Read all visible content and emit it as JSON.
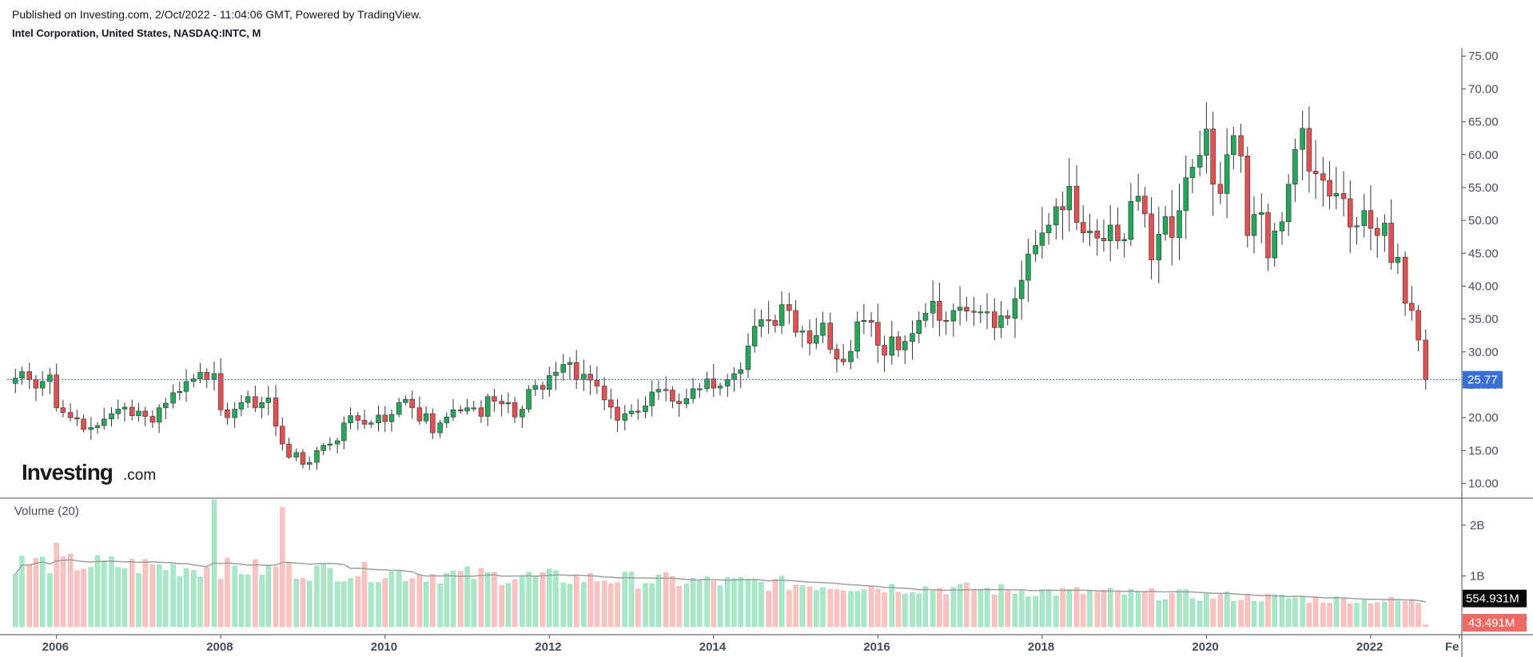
{
  "header": {
    "published": "Published on Investing.com, 2/Oct/2022 - 11:04:06 GMT, Powered by TradingView.",
    "symbol": "Intel Corporation, United States, NASDAQ:INTC, M"
  },
  "logo": {
    "text": "Investing",
    "suffix": ".com"
  },
  "colors": {
    "up": "#26a65b",
    "down": "#e05252",
    "up_volume": "#a6e8c8",
    "down_volume": "#fbc3c0",
    "last_price": "#3b6fd8",
    "volume_ma": "#9e9e9e"
  },
  "chart_data": {
    "type": "candlestick",
    "interval": "monthly",
    "price": {
      "ylim": [
        8,
        76
      ],
      "yticks": [
        "10.00",
        "15.00",
        "20.00",
        "25.00",
        "30.00",
        "35.00",
        "40.00",
        "45.00",
        "50.00",
        "55.00",
        "60.00",
        "65.00",
        "70.00",
        "75.00"
      ],
      "last_price": 25.77,
      "last_price_label": "25.77",
      "monthly_close": [
        [
          2005.5,
          26.0
        ],
        [
          2005.58,
          27.0
        ],
        [
          2005.67,
          25.8
        ],
        [
          2005.75,
          24.5
        ],
        [
          2005.83,
          25.5
        ],
        [
          2005.92,
          26.5
        ],
        [
          2006.0,
          21.5
        ],
        [
          2006.08,
          20.8
        ],
        [
          2006.17,
          20.0
        ],
        [
          2006.25,
          19.8
        ],
        [
          2006.33,
          18.2
        ],
        [
          2006.42,
          18.5
        ],
        [
          2006.5,
          18.8
        ],
        [
          2006.58,
          19.8
        ],
        [
          2006.67,
          20.6
        ],
        [
          2006.75,
          21.3
        ],
        [
          2006.83,
          21.6
        ],
        [
          2006.92,
          20.3
        ],
        [
          2007.0,
          21.0
        ],
        [
          2007.08,
          20.2
        ],
        [
          2007.17,
          19.3
        ],
        [
          2007.25,
          21.5
        ],
        [
          2007.33,
          22.2
        ],
        [
          2007.42,
          23.8
        ],
        [
          2007.5,
          24.0
        ],
        [
          2007.58,
          25.5
        ],
        [
          2007.67,
          25.9
        ],
        [
          2007.75,
          26.9
        ],
        [
          2007.83,
          25.8
        ],
        [
          2007.92,
          26.7
        ],
        [
          2008.0,
          21.2
        ],
        [
          2008.08,
          20.0
        ],
        [
          2008.17,
          21.3
        ],
        [
          2008.25,
          22.3
        ],
        [
          2008.33,
          23.2
        ],
        [
          2008.42,
          21.5
        ],
        [
          2008.5,
          22.3
        ],
        [
          2008.58,
          23.0
        ],
        [
          2008.67,
          18.7
        ],
        [
          2008.75,
          16.0
        ],
        [
          2008.83,
          14.0
        ],
        [
          2008.92,
          14.7
        ],
        [
          2009.0,
          12.9
        ],
        [
          2009.08,
          13.2
        ],
        [
          2009.17,
          15.0
        ],
        [
          2009.25,
          15.8
        ],
        [
          2009.33,
          16.0
        ],
        [
          2009.42,
          16.5
        ],
        [
          2009.5,
          19.2
        ],
        [
          2009.58,
          20.3
        ],
        [
          2009.67,
          19.6
        ],
        [
          2009.75,
          19.0
        ],
        [
          2009.83,
          19.2
        ],
        [
          2009.92,
          20.4
        ],
        [
          2010.0,
          19.4
        ],
        [
          2010.08,
          20.5
        ],
        [
          2010.17,
          22.3
        ],
        [
          2010.25,
          22.8
        ],
        [
          2010.33,
          21.5
        ],
        [
          2010.42,
          19.5
        ],
        [
          2010.5,
          20.6
        ],
        [
          2010.58,
          17.7
        ],
        [
          2010.67,
          19.2
        ],
        [
          2010.75,
          20.1
        ],
        [
          2010.83,
          21.2
        ],
        [
          2010.92,
          21.0
        ],
        [
          2011.0,
          21.5
        ],
        [
          2011.08,
          21.5
        ],
        [
          2011.17,
          20.2
        ],
        [
          2011.25,
          23.2
        ],
        [
          2011.33,
          22.5
        ],
        [
          2011.42,
          22.1
        ],
        [
          2011.5,
          22.3
        ],
        [
          2011.58,
          20.1
        ],
        [
          2011.67,
          21.3
        ],
        [
          2011.75,
          24.3
        ],
        [
          2011.83,
          24.9
        ],
        [
          2011.92,
          24.3
        ],
        [
          2012.0,
          26.4
        ],
        [
          2012.08,
          26.9
        ],
        [
          2012.17,
          28.1
        ],
        [
          2012.25,
          28.4
        ],
        [
          2012.33,
          25.8
        ],
        [
          2012.42,
          26.6
        ],
        [
          2012.5,
          25.7
        ],
        [
          2012.58,
          24.8
        ],
        [
          2012.67,
          22.7
        ],
        [
          2012.75,
          21.6
        ],
        [
          2012.83,
          19.6
        ],
        [
          2012.92,
          20.6
        ],
        [
          2013.0,
          21.0
        ],
        [
          2013.08,
          20.9
        ],
        [
          2013.17,
          21.8
        ],
        [
          2013.25,
          23.9
        ],
        [
          2013.33,
          24.3
        ],
        [
          2013.42,
          24.2
        ],
        [
          2013.5,
          22.5
        ],
        [
          2013.58,
          22.1
        ],
        [
          2013.67,
          22.9
        ],
        [
          2013.75,
          24.4
        ],
        [
          2013.83,
          24.4
        ],
        [
          2013.92,
          25.9
        ],
        [
          2014.0,
          24.5
        ],
        [
          2014.08,
          24.8
        ],
        [
          2014.17,
          25.8
        ],
        [
          2014.25,
          26.7
        ],
        [
          2014.33,
          27.3
        ],
        [
          2014.42,
          30.9
        ],
        [
          2014.5,
          33.9
        ],
        [
          2014.58,
          34.9
        ],
        [
          2014.67,
          34.8
        ],
        [
          2014.75,
          34.0
        ],
        [
          2014.83,
          37.2
        ],
        [
          2014.92,
          36.3
        ],
        [
          2015.0,
          33.0
        ],
        [
          2015.08,
          33.2
        ],
        [
          2015.17,
          31.3
        ],
        [
          2015.25,
          32.5
        ],
        [
          2015.33,
          34.4
        ],
        [
          2015.42,
          30.4
        ],
        [
          2015.5,
          28.9
        ],
        [
          2015.58,
          28.5
        ],
        [
          2015.67,
          30.1
        ],
        [
          2015.75,
          34.6
        ],
        [
          2015.83,
          34.8
        ],
        [
          2015.92,
          34.5
        ],
        [
          2016.0,
          31.0
        ],
        [
          2016.08,
          29.5
        ],
        [
          2016.17,
          32.3
        ],
        [
          2016.25,
          30.3
        ],
        [
          2016.33,
          31.6
        ],
        [
          2016.42,
          32.8
        ],
        [
          2016.5,
          34.8
        ],
        [
          2016.58,
          35.9
        ],
        [
          2016.67,
          37.7
        ],
        [
          2016.75,
          34.8
        ],
        [
          2016.83,
          34.7
        ],
        [
          2016.92,
          36.3
        ],
        [
          2017.0,
          36.8
        ],
        [
          2017.08,
          36.2
        ],
        [
          2017.17,
          36.1
        ],
        [
          2017.25,
          36.1
        ],
        [
          2017.33,
          36.1
        ],
        [
          2017.42,
          33.7
        ],
        [
          2017.5,
          35.5
        ],
        [
          2017.58,
          35.1
        ],
        [
          2017.67,
          38.1
        ],
        [
          2017.75,
          40.9
        ],
        [
          2017.83,
          44.9
        ],
        [
          2017.92,
          46.2
        ],
        [
          2018.0,
          48.1
        ],
        [
          2018.08,
          49.3
        ],
        [
          2018.17,
          52.1
        ],
        [
          2018.25,
          51.6
        ],
        [
          2018.33,
          55.2
        ],
        [
          2018.42,
          49.7
        ],
        [
          2018.5,
          48.1
        ],
        [
          2018.58,
          48.4
        ],
        [
          2018.67,
          47.3
        ],
        [
          2018.75,
          46.9
        ],
        [
          2018.83,
          49.3
        ],
        [
          2018.92,
          46.9
        ],
        [
          2019.0,
          47.1
        ],
        [
          2019.08,
          52.9
        ],
        [
          2019.17,
          53.7
        ],
        [
          2019.25,
          51.0
        ],
        [
          2019.33,
          44.0
        ],
        [
          2019.42,
          47.9
        ],
        [
          2019.5,
          50.6
        ],
        [
          2019.58,
          47.4
        ],
        [
          2019.67,
          51.5
        ],
        [
          2019.75,
          56.5
        ],
        [
          2019.83,
          58.1
        ],
        [
          2019.92,
          59.9
        ],
        [
          2020.0,
          63.9
        ],
        [
          2020.08,
          55.5
        ],
        [
          2020.17,
          54.1
        ],
        [
          2020.25,
          60.0
        ],
        [
          2020.33,
          62.9
        ],
        [
          2020.42,
          59.8
        ],
        [
          2020.5,
          47.7
        ],
        [
          2020.58,
          50.9
        ],
        [
          2020.67,
          51.2
        ],
        [
          2020.75,
          44.3
        ],
        [
          2020.83,
          48.4
        ],
        [
          2020.92,
          49.8
        ],
        [
          2021.0,
          55.5
        ],
        [
          2021.08,
          60.8
        ],
        [
          2021.17,
          64.0
        ],
        [
          2021.25,
          57.5
        ],
        [
          2021.33,
          57.1
        ],
        [
          2021.42,
          56.1
        ],
        [
          2021.5,
          53.7
        ],
        [
          2021.58,
          54.1
        ],
        [
          2021.67,
          53.3
        ],
        [
          2021.75,
          49.0
        ],
        [
          2021.83,
          49.2
        ],
        [
          2021.92,
          51.5
        ],
        [
          2022.0,
          48.8
        ],
        [
          2022.08,
          47.7
        ],
        [
          2022.17,
          49.6
        ],
        [
          2022.25,
          43.6
        ],
        [
          2022.33,
          44.4
        ],
        [
          2022.42,
          37.4
        ],
        [
          2022.5,
          36.3
        ],
        [
          2022.58,
          31.8
        ],
        [
          2022.67,
          25.8
        ]
      ]
    },
    "volume": {
      "label": "Volume (20)",
      "ylim": [
        0,
        2.5
      ],
      "yticks": [
        {
          "value": 1,
          "label": "1B"
        },
        {
          "value": 2,
          "label": "2B"
        }
      ],
      "volume_ma_label": "554.931M",
      "last_volume_label": "43.491M",
      "spikes": [
        [
          2006.0,
          1.65
        ],
        [
          2007.92,
          2.5
        ],
        [
          2008.75,
          2.35
        ]
      ]
    },
    "xaxis": {
      "range": [
        2005.4,
        2023.1
      ],
      "ticks": [
        {
          "value": 2006,
          "label": "2006"
        },
        {
          "value": 2008,
          "label": "2008"
        },
        {
          "value": 2010,
          "label": "2010"
        },
        {
          "value": 2012,
          "label": "2012"
        },
        {
          "value": 2014,
          "label": "2014"
        },
        {
          "value": 2016,
          "label": "2016"
        },
        {
          "value": 2018,
          "label": "2018"
        },
        {
          "value": 2020,
          "label": "2020"
        },
        {
          "value": 2022,
          "label": "2022"
        },
        {
          "value": 2023.08,
          "label": "Fe"
        }
      ]
    }
  }
}
